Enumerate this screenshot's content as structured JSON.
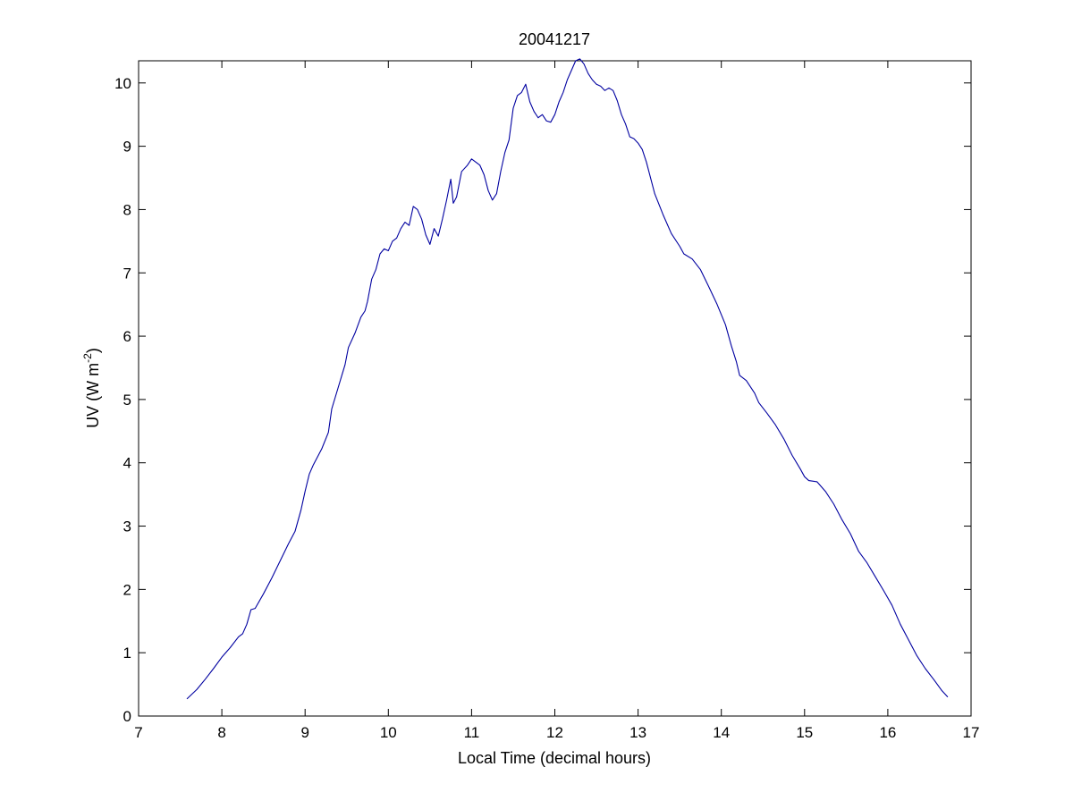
{
  "figure": {
    "background_color": "#ffffff"
  },
  "chart_data": {
    "type": "line",
    "title": "20041217",
    "xlabel": "Local Time (decimal hours)",
    "ylabel": {
      "main": "UV (W m",
      "superscript": "-2",
      "closing": ")"
    },
    "xlim": [
      7,
      17
    ],
    "ylim": [
      0,
      10.35
    ],
    "xticks": [
      "7",
      "8",
      "9",
      "10",
      "11",
      "12",
      "13",
      "14",
      "15",
      "16",
      "17"
    ],
    "yticks": [
      "0",
      "1",
      "2",
      "3",
      "4",
      "5",
      "6",
      "7",
      "8",
      "9",
      "10"
    ],
    "grid": false,
    "legend": "none",
    "series": [
      {
        "color": "#0000a0",
        "points": [
          [
            7.58,
            0.27
          ],
          [
            7.7,
            0.42
          ],
          [
            7.8,
            0.58
          ],
          [
            7.9,
            0.75
          ],
          [
            8.0,
            0.93
          ],
          [
            8.1,
            1.08
          ],
          [
            8.2,
            1.25
          ],
          [
            8.25,
            1.3
          ],
          [
            8.3,
            1.45
          ],
          [
            8.35,
            1.68
          ],
          [
            8.4,
            1.7
          ],
          [
            8.5,
            1.93
          ],
          [
            8.6,
            2.18
          ],
          [
            8.7,
            2.45
          ],
          [
            8.8,
            2.72
          ],
          [
            8.88,
            2.92
          ],
          [
            8.95,
            3.25
          ],
          [
            9.0,
            3.55
          ],
          [
            9.05,
            3.82
          ],
          [
            9.1,
            3.97
          ],
          [
            9.2,
            4.22
          ],
          [
            9.28,
            4.48
          ],
          [
            9.32,
            4.85
          ],
          [
            9.4,
            5.2
          ],
          [
            9.48,
            5.55
          ],
          [
            9.52,
            5.82
          ],
          [
            9.6,
            6.05
          ],
          [
            9.67,
            6.3
          ],
          [
            9.72,
            6.4
          ],
          [
            9.75,
            6.55
          ],
          [
            9.8,
            6.9
          ],
          [
            9.85,
            7.05
          ],
          [
            9.9,
            7.3
          ],
          [
            9.95,
            7.38
          ],
          [
            10.0,
            7.35
          ],
          [
            10.05,
            7.5
          ],
          [
            10.1,
            7.55
          ],
          [
            10.15,
            7.7
          ],
          [
            10.2,
            7.8
          ],
          [
            10.25,
            7.75
          ],
          [
            10.3,
            8.05
          ],
          [
            10.35,
            8.0
          ],
          [
            10.4,
            7.85
          ],
          [
            10.45,
            7.6
          ],
          [
            10.5,
            7.45
          ],
          [
            10.55,
            7.7
          ],
          [
            10.6,
            7.58
          ],
          [
            10.65,
            7.85
          ],
          [
            10.7,
            8.15
          ],
          [
            10.75,
            8.48
          ],
          [
            10.78,
            8.1
          ],
          [
            10.82,
            8.2
          ],
          [
            10.88,
            8.6
          ],
          [
            10.95,
            8.7
          ],
          [
            11.0,
            8.8
          ],
          [
            11.05,
            8.75
          ],
          [
            11.1,
            8.7
          ],
          [
            11.15,
            8.55
          ],
          [
            11.2,
            8.3
          ],
          [
            11.25,
            8.15
          ],
          [
            11.3,
            8.25
          ],
          [
            11.35,
            8.6
          ],
          [
            11.4,
            8.9
          ],
          [
            11.45,
            9.1
          ],
          [
            11.5,
            9.6
          ],
          [
            11.55,
            9.8
          ],
          [
            11.6,
            9.85
          ],
          [
            11.65,
            9.98
          ],
          [
            11.7,
            9.7
          ],
          [
            11.75,
            9.55
          ],
          [
            11.8,
            9.45
          ],
          [
            11.85,
            9.5
          ],
          [
            11.9,
            9.4
          ],
          [
            11.95,
            9.38
          ],
          [
            12.0,
            9.5
          ],
          [
            12.05,
            9.7
          ],
          [
            12.1,
            9.85
          ],
          [
            12.15,
            10.05
          ],
          [
            12.2,
            10.2
          ],
          [
            12.25,
            10.35
          ],
          [
            12.3,
            10.38
          ],
          [
            12.35,
            10.3
          ],
          [
            12.4,
            10.15
          ],
          [
            12.45,
            10.05
          ],
          [
            12.5,
            9.98
          ],
          [
            12.55,
            9.95
          ],
          [
            12.6,
            9.88
          ],
          [
            12.65,
            9.92
          ],
          [
            12.7,
            9.88
          ],
          [
            12.75,
            9.72
          ],
          [
            12.8,
            9.5
          ],
          [
            12.85,
            9.35
          ],
          [
            12.9,
            9.15
          ],
          [
            12.95,
            9.12
          ],
          [
            13.0,
            9.05
          ],
          [
            13.05,
            8.95
          ],
          [
            13.1,
            8.75
          ],
          [
            13.15,
            8.5
          ],
          [
            13.2,
            8.25
          ],
          [
            13.3,
            7.92
          ],
          [
            13.4,
            7.62
          ],
          [
            13.5,
            7.42
          ],
          [
            13.55,
            7.3
          ],
          [
            13.65,
            7.22
          ],
          [
            13.75,
            7.05
          ],
          [
            13.85,
            6.78
          ],
          [
            13.95,
            6.5
          ],
          [
            14.05,
            6.18
          ],
          [
            14.12,
            5.85
          ],
          [
            14.18,
            5.6
          ],
          [
            14.22,
            5.38
          ],
          [
            14.3,
            5.3
          ],
          [
            14.4,
            5.1
          ],
          [
            14.45,
            4.95
          ],
          [
            14.55,
            4.78
          ],
          [
            14.65,
            4.6
          ],
          [
            14.75,
            4.38
          ],
          [
            14.85,
            4.12
          ],
          [
            14.95,
            3.9
          ],
          [
            15.0,
            3.78
          ],
          [
            15.05,
            3.72
          ],
          [
            15.15,
            3.7
          ],
          [
            15.25,
            3.55
          ],
          [
            15.35,
            3.35
          ],
          [
            15.45,
            3.1
          ],
          [
            15.55,
            2.88
          ],
          [
            15.65,
            2.6
          ],
          [
            15.75,
            2.42
          ],
          [
            15.85,
            2.2
          ],
          [
            15.95,
            1.98
          ],
          [
            16.05,
            1.75
          ],
          [
            16.15,
            1.45
          ],
          [
            16.25,
            1.2
          ],
          [
            16.35,
            0.95
          ],
          [
            16.45,
            0.75
          ],
          [
            16.55,
            0.58
          ],
          [
            16.65,
            0.4
          ],
          [
            16.72,
            0.3
          ]
        ]
      }
    ]
  }
}
